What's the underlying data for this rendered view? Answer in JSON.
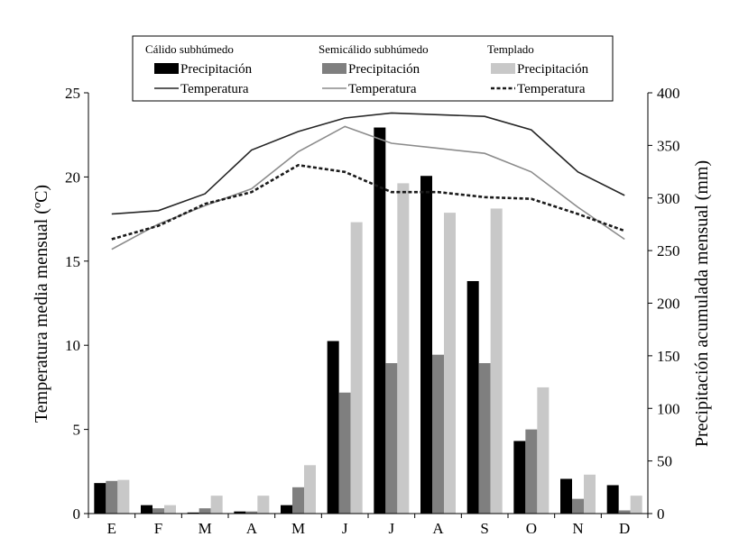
{
  "chart_data": {
    "type": "bar+line",
    "categories": [
      "E",
      "F",
      "M",
      "A",
      "M",
      "J",
      "J",
      "A",
      "S",
      "O",
      "N",
      "D"
    ],
    "left_axis": {
      "label": "Temperatura media mensual (ºC)",
      "ylim": [
        0,
        25
      ],
      "ticks": [
        0,
        5,
        10,
        15,
        20,
        25
      ]
    },
    "right_axis": {
      "label": "Precipitación acumulada mensual (mm)",
      "ylim": [
        0,
        400
      ],
      "ticks": [
        0,
        50,
        100,
        150,
        200,
        250,
        300,
        350,
        400
      ]
    },
    "legend": {
      "placement": "top",
      "groups": [
        {
          "title": "Cálido subhúmedo",
          "bar_label": "Precipitación",
          "line_label": "Temperatura"
        },
        {
          "title": "Semicálido subhúmedo",
          "bar_label": "Precipitación",
          "line_label": "Temperatura"
        },
        {
          "title": "Templado",
          "bar_label": "Precipitación",
          "line_label": "Temperatura"
        }
      ]
    },
    "colors": {
      "calido": "#000000",
      "semicalido": "#7f7f7f",
      "templado": "#c8c8c8",
      "line_calido": "#262626",
      "line_semicalido": "#8c8c8c",
      "line_templado": "#1a1a1a"
    },
    "precipitation_series": [
      {
        "group": "Cálido subhúmedo",
        "values": [
          29,
          8,
          1,
          2,
          8,
          164,
          367,
          321,
          221,
          69,
          33,
          27
        ]
      },
      {
        "group": "Semicálido subhúmedo",
        "values": [
          31,
          5,
          5,
          2,
          25,
          115,
          143,
          151,
          143,
          80,
          14,
          3
        ]
      },
      {
        "group": "Templado",
        "values": [
          32,
          8,
          17,
          17,
          46,
          277,
          314,
          286,
          290,
          120,
          37,
          17
        ]
      }
    ],
    "temperature_series": [
      {
        "group": "Cálido subhúmedo",
        "style": "solid",
        "values": [
          17.8,
          18.0,
          19.0,
          21.6,
          22.7,
          23.5,
          23.8,
          23.7,
          23.6,
          22.8,
          20.3,
          18.9
        ]
      },
      {
        "group": "Semicálido subhúmedo",
        "style": "solid",
        "values": [
          15.7,
          17.2,
          18.3,
          19.3,
          21.5,
          23.0,
          22.0,
          21.7,
          21.4,
          20.3,
          18.2,
          16.3
        ]
      },
      {
        "group": "Templado",
        "style": "dashed",
        "values": [
          16.3,
          17.1,
          18.4,
          19.1,
          20.7,
          20.3,
          19.1,
          19.1,
          18.8,
          18.7,
          17.8,
          16.8
        ]
      }
    ]
  }
}
